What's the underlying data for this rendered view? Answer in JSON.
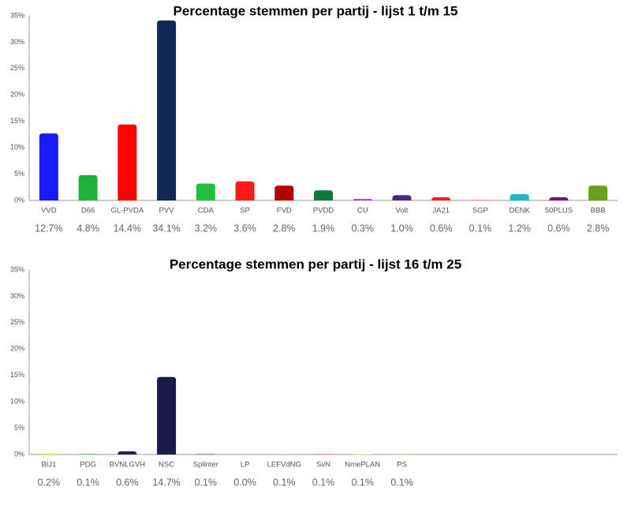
{
  "chart_data": [
    {
      "type": "bar",
      "title": "Percentage stemmen per partij - lijst 1 t/m 15",
      "categories": [
        "VVD",
        "D66",
        "GL-PVDA",
        "PVV",
        "CDA",
        "SP",
        "FVD",
        "PVDD",
        "CU",
        "Volt",
        "JA21",
        "SGP",
        "DENK",
        "50PLUS",
        "BBB"
      ],
      "values": [
        12.7,
        4.8,
        14.4,
        34.1,
        3.2,
        3.6,
        2.8,
        1.9,
        0.3,
        1.0,
        0.6,
        0.1,
        1.2,
        0.6,
        2.8
      ],
      "value_labels": [
        "12.7%",
        "4.8%",
        "14.4%",
        "34.1%",
        "3.2%",
        "3.6%",
        "2.8%",
        "1.9%",
        "0.3%",
        "1.0%",
        "0.6%",
        "0.1%",
        "1.2%",
        "0.6%",
        "2.8%"
      ],
      "colors": [
        "#1a1aff",
        "#1fb33a",
        "#ff0000",
        "#0e2a52",
        "#1fc23a",
        "#ff1a1a",
        "#b30000",
        "#0a7a3a",
        "#cc33ff",
        "#4b2a7a",
        "#ff1a1a",
        "#ff66cc",
        "#1ab8c8",
        "#8a0a6a",
        "#6b9e1a"
      ],
      "ylim": [
        0,
        35
      ],
      "yticks": [
        {
          "value": 0,
          "label": "0%"
        },
        {
          "value": 5,
          "label": "5%"
        },
        {
          "value": 10,
          "label": "10%"
        },
        {
          "value": 15,
          "label": "15%"
        },
        {
          "value": 20,
          "label": "20%"
        },
        {
          "value": 25,
          "label": "25%"
        },
        {
          "value": 30,
          "label": "30%"
        },
        {
          "value": 35,
          "label": "35%"
        }
      ],
      "grid": false
    },
    {
      "type": "bar",
      "title": "Percentage stemmen per partij - lijst 16 t/m 25",
      "categories": [
        "BIJ1",
        "PDG",
        "BVNLGVH",
        "NSC",
        "Splinter",
        "LP",
        "LEFVdNG",
        "SvN",
        "NmePLAN",
        "PS"
      ],
      "values": [
        0.2,
        0.1,
        0.6,
        14.7,
        0.1,
        0.0,
        0.1,
        0.1,
        0.1,
        0.1
      ],
      "value_labels": [
        "0.2%",
        "0.1%",
        "0.6%",
        "14.7%",
        "0.1%",
        "0.0%",
        "0.1%",
        "0.1%",
        "0.1%",
        "0.1%"
      ],
      "colors": [
        "#ffee33",
        "#3aa63a",
        "#1a2a4a",
        "#1a1a4a",
        "#6a4a9a",
        "#999999",
        "#ccaaff",
        "#ff6666",
        "#ffee66",
        "#cccc66"
      ],
      "ylim": [
        0,
        35
      ],
      "yticks": [
        {
          "value": 0,
          "label": "0%"
        },
        {
          "value": 5,
          "label": "5%"
        },
        {
          "value": 10,
          "label": "10%"
        },
        {
          "value": 15,
          "label": "15%"
        },
        {
          "value": 20,
          "label": "20%"
        },
        {
          "value": 25,
          "label": "25%"
        },
        {
          "value": 30,
          "label": "30%"
        },
        {
          "value": 35,
          "label": "35%"
        }
      ],
      "grid": false
    }
  ]
}
